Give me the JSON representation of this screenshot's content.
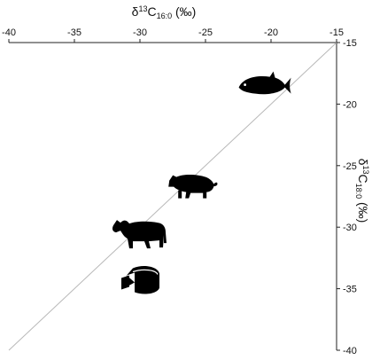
{
  "chart_data": {
    "type": "scatter",
    "title": "",
    "xlabel": {
      "main": "δ",
      "sup": "13",
      "base": "C",
      "sub": "16:0",
      "unit": " (‰)"
    },
    "ylabel": {
      "main": "δ",
      "sup": "13",
      "base": "C",
      "sub": "18:0",
      "unit": " (‰)"
    },
    "xlim": [
      -40,
      -15
    ],
    "ylim": [
      -40,
      -15
    ],
    "x_ticks": [
      -40,
      -35,
      -30,
      -25,
      -20,
      -15
    ],
    "y_ticks": [
      -15,
      -20,
      -25,
      -30,
      -35,
      -40
    ],
    "x_axis_position": "top",
    "y_axis_position": "right",
    "grid": false,
    "reference_line": {
      "from": [
        -40,
        -40
      ],
      "to": [
        -15,
        -15
      ],
      "color": "#b8b8b8"
    },
    "points": [
      {
        "category": "fish",
        "x": -20.5,
        "y": -18.5,
        "icon": "fish-icon"
      },
      {
        "category": "pig",
        "x": -26.0,
        "y": -26.5,
        "icon": "pig-icon"
      },
      {
        "category": "cow",
        "x": -30.0,
        "y": -30.5,
        "icon": "cow-icon"
      },
      {
        "category": "cheese",
        "x": -30.0,
        "y": -34.2,
        "icon": "cheese-icon"
      }
    ],
    "colors": {
      "axes": "#222222",
      "reference_line": "#b8b8b8",
      "markers": "#000000"
    }
  }
}
